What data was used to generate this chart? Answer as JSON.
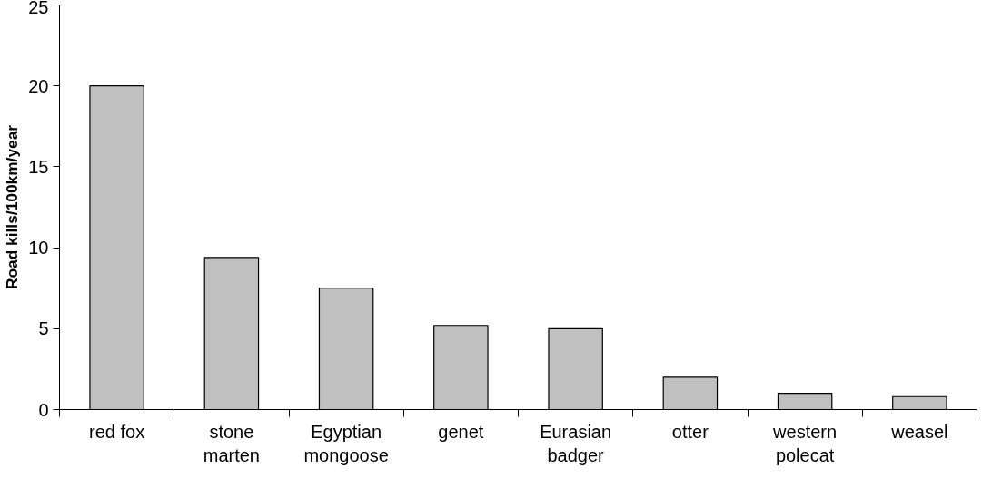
{
  "chart_data": {
    "type": "bar",
    "ylabel": "Road kills/100km/year",
    "categories": [
      "red fox",
      "stone marten",
      "Egyptian mongoose",
      "genet",
      "Eurasian badger",
      "otter",
      "western polecat",
      "weasel"
    ],
    "values": [
      20,
      9.4,
      7.5,
      5.2,
      5,
      2,
      1,
      0.8
    ],
    "color": "#c0c0c0",
    "ylim": [
      0,
      25
    ],
    "yticks": [
      0,
      5,
      10,
      15,
      20,
      25
    ],
    "grid": false
  }
}
